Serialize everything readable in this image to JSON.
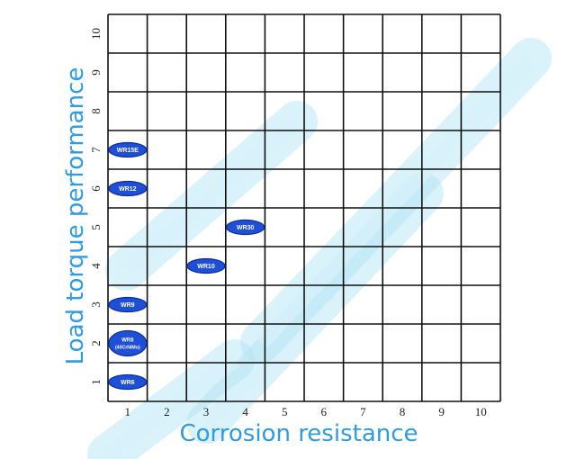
{
  "chart_data": {
    "type": "scatter",
    "xlabel": "Corrosion resistance",
    "ylabel": "Load torque performance",
    "xlim": [
      0.5,
      10.5
    ],
    "ylim": [
      0.5,
      10.5
    ],
    "x_ticks": [
      1,
      2,
      3,
      4,
      5,
      6,
      7,
      8,
      9,
      10
    ],
    "y_ticks": [
      1,
      2,
      3,
      4,
      5,
      6,
      7,
      8,
      9,
      10
    ],
    "grid": true,
    "marker_color": "#1e4fd6",
    "points": [
      {
        "label": "WR6",
        "x": 1,
        "y": 1
      },
      {
        "label": "WR8",
        "sublabel": "(40CrNiMo)",
        "x": 1,
        "y": 2
      },
      {
        "label": "WR9",
        "x": 1,
        "y": 3
      },
      {
        "label": "WR10",
        "x": 3,
        "y": 4
      },
      {
        "label": "WR30",
        "x": 4,
        "y": 5
      },
      {
        "label": "WR12",
        "x": 1,
        "y": 6
      },
      {
        "label": "WR15E",
        "x": 1,
        "y": 7
      }
    ]
  }
}
